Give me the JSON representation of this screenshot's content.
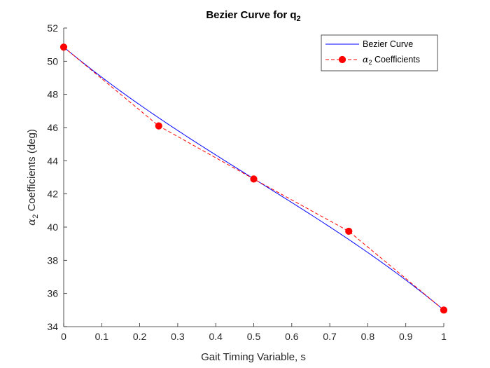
{
  "chart_data": {
    "type": "line",
    "title": "Bezier Curve for q",
    "title_subscript": "2",
    "xlabel": "Gait Timing Variable, s",
    "ylabel_prefix": "α",
    "ylabel_subscript": "2",
    "ylabel_suffix": " Coefficients (deg)",
    "xlim": [
      0,
      1
    ],
    "ylim": [
      34,
      52
    ],
    "xticks": [
      0,
      0.1,
      0.2,
      0.3,
      0.4,
      0.5,
      0.6,
      0.7,
      0.8,
      0.9,
      1
    ],
    "xtick_labels": [
      "0",
      "0.1",
      "0.2",
      "0.3",
      "0.4",
      "0.5",
      "0.6",
      "0.7",
      "0.8",
      "0.9",
      "1"
    ],
    "yticks": [
      34,
      36,
      38,
      40,
      42,
      44,
      46,
      48,
      50,
      52
    ],
    "ytick_labels": [
      "34",
      "36",
      "38",
      "40",
      "42",
      "44",
      "46",
      "48",
      "50",
      "52"
    ],
    "grid": false,
    "legend_position": "top-right",
    "series": [
      {
        "name": "Bezier Curve",
        "style": "solid",
        "color": "#0000ff",
        "bezier_control_points": [
          50.85,
          46.1,
          42.9,
          39.75,
          35.0
        ]
      },
      {
        "name": "Coefficients",
        "name_prefix": "α",
        "name_subscript": "2",
        "style": "dashed",
        "marker": "circle",
        "color": "#ff0000",
        "x": [
          0,
          0.25,
          0.5,
          0.75,
          1
        ],
        "y": [
          50.85,
          46.1,
          42.9,
          39.75,
          35.0
        ]
      }
    ]
  }
}
